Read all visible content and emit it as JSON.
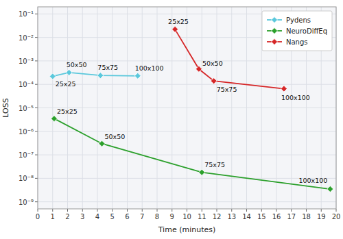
{
  "chart_data": {
    "type": "line",
    "log": "y",
    "grid": true,
    "legend": "upper right",
    "xlabel": "Time (minutes)",
    "ylabel": "LOSS",
    "xlim": [
      0,
      20
    ],
    "ylim": [
      5e-10,
      0.2
    ],
    "xticks": [
      0,
      1,
      2,
      3,
      4,
      5,
      6,
      7,
      8,
      9,
      10,
      11,
      12,
      13,
      14,
      15,
      16,
      17,
      18,
      19,
      20
    ],
    "yticks": [
      {
        "value": 0.1,
        "label": "10⁻¹"
      },
      {
        "value": 0.01,
        "label": "10⁻²"
      },
      {
        "value": 0.001,
        "label": "10⁻³"
      },
      {
        "value": 0.0001,
        "label": "10⁻⁴"
      },
      {
        "value": 1e-05,
        "label": "10⁻⁵"
      },
      {
        "value": 1e-06,
        "label": "10⁻⁶"
      },
      {
        "value": 1e-07,
        "label": "10⁻⁷"
      },
      {
        "value": 1e-08,
        "label": "10⁻⁸"
      },
      {
        "value": 1e-09,
        "label": "10⁻⁹"
      }
    ],
    "series": [
      {
        "name": "Pydens",
        "color": "#5bc8dc",
        "marker": "diamond",
        "x": [
          1.0,
          2.1,
          4.2,
          6.7
        ],
        "values": [
          0.00022,
          0.00032,
          0.00024,
          0.00023
        ]
      },
      {
        "name": "NeuroDiffEq",
        "color": "#2ca02c",
        "marker": "diamond",
        "x": [
          1.1,
          4.3,
          11.0,
          19.6
        ],
        "values": [
          3.5e-06,
          3e-07,
          1.8e-08,
          3.5e-09
        ]
      },
      {
        "name": "Nangs",
        "color": "#d62728",
        "marker": "diamond",
        "x": [
          9.2,
          10.8,
          11.8,
          16.5
        ],
        "values": [
          0.022,
          0.00045,
          0.00014,
          6.5e-05
        ]
      }
    ],
    "annotations": [
      {
        "text": "25x25",
        "x": 1.0,
        "y": 0.00022
      },
      {
        "text": "50x50",
        "x": 2.1,
        "y": 0.00032
      },
      {
        "text": "75x75",
        "x": 4.2,
        "y": 0.00024
      },
      {
        "text": "100x100",
        "x": 6.7,
        "y": 0.00023
      },
      {
        "text": "25x25",
        "x": 1.1,
        "y": 3.5e-06
      },
      {
        "text": "50x50",
        "x": 4.3,
        "y": 3e-07
      },
      {
        "text": "75x75",
        "x": 11.0,
        "y": 1.8e-08
      },
      {
        "text": "100x100",
        "x": 19.6,
        "y": 3.5e-09
      },
      {
        "text": "25x25",
        "x": 9.2,
        "y": 0.022
      },
      {
        "text": "50x50",
        "x": 10.8,
        "y": 0.00045
      },
      {
        "text": "75x75",
        "x": 11.8,
        "y": 0.00014
      },
      {
        "text": "100x100",
        "x": 16.5,
        "y": 6.5e-05
      }
    ]
  }
}
